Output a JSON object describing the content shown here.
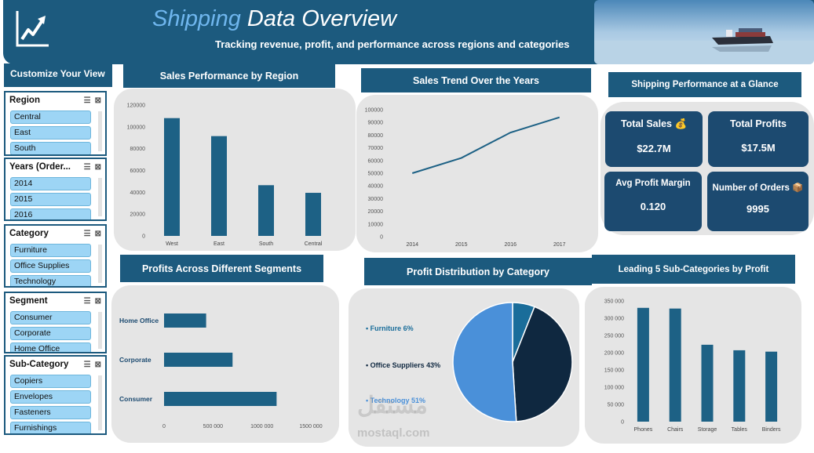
{
  "header": {
    "title_accent": "Shipping",
    "title_rest": " Data Overview",
    "subtitle": "Tracking revenue, profit, and performance across regions and categories"
  },
  "customize": {
    "title": "Customize Your View"
  },
  "slicers": [
    {
      "title": "Region",
      "items": [
        "Central",
        "East",
        "South"
      ]
    },
    {
      "title": "Years (Order...",
      "items": [
        "2014",
        "2015",
        "2016"
      ]
    },
    {
      "title": "Category",
      "items": [
        "Furniture",
        "Office Supplies",
        "Technology"
      ]
    },
    {
      "title": "Segment",
      "items": [
        "Consumer",
        "Corporate",
        "Home Office"
      ]
    },
    {
      "title": "Sub-Category",
      "items": [
        "Copiers",
        "Envelopes",
        "Fasteners",
        "Furnishings"
      ]
    }
  ],
  "sections": {
    "region": "Sales Performance by Region",
    "trend": "Sales Trend Over the Years",
    "glance": "Shipping Performance at a Glance",
    "segments": "Profits Across Different Segments",
    "distribution": "Profit Distribution by Category",
    "subcat": "Leading 5 Sub-Categories by Profit"
  },
  "kpis": {
    "total_sales_label": "Total Sales 💰",
    "total_sales_value": "$22.7M",
    "total_profits_label": "Total Profits",
    "total_profits_value": "$17.5M",
    "margin_label": "Avg Profit Margin",
    "margin_value": "0.120",
    "orders_label": "Number of Orders 📦",
    "orders_value": "9995"
  },
  "colors": {
    "primary": "#1c5a7e",
    "bar": "#1d6185",
    "panel": "#e5e5e5",
    "pie_furniture": "#1a6d9a",
    "pie_office": "#0f2840",
    "pie_technology": "#4a90d9"
  },
  "chart_data": [
    {
      "type": "bar",
      "categories": [
        "West",
        "East",
        "South",
        "Central"
      ],
      "values": [
        108000,
        91500,
        46500,
        39500
      ],
      "ylim": [
        0,
        120000
      ],
      "yticks": [
        "0",
        "20000",
        "40000",
        "60000",
        "80000",
        "100000",
        "120000"
      ]
    },
    {
      "type": "line",
      "x": [
        "2014",
        "2015",
        "2016",
        "2017"
      ],
      "values": [
        50000,
        62000,
        82000,
        94000
      ],
      "ylim": [
        0,
        100000
      ],
      "yticks": [
        "0",
        "10000",
        "20000",
        "30000",
        "40000",
        "50000",
        "60000",
        "70000",
        "80000",
        "90000",
        "100000"
      ]
    },
    {
      "type": "bar",
      "orientation": "horizontal",
      "categories": [
        "Home Office",
        "Corporate",
        "Consumer"
      ],
      "values": [
        430000,
        700000,
        1150000
      ],
      "xlim": [
        0,
        1500000
      ],
      "xticks": [
        "0",
        "500000",
        "1000000",
        "1500000"
      ]
    },
    {
      "type": "pie",
      "categories": [
        "Furniture",
        "Office Suppliers",
        "Technology"
      ],
      "labels": [
        "Furniture 6%",
        "Office Suppliers 43%",
        "Technology 51%"
      ],
      "values": [
        6,
        43,
        51
      ]
    },
    {
      "type": "bar",
      "categories": [
        "Phones",
        "Chairs",
        "Storage",
        "Tables",
        "Binders"
      ],
      "values": [
        330000,
        328000,
        223000,
        207000,
        203000
      ],
      "ylim": [
        0,
        350000
      ],
      "yticks": [
        "0",
        "50000",
        "100000",
        "150000",
        "200000",
        "250000",
        "300000",
        "350000"
      ]
    }
  ],
  "watermark": {
    "arabic": "مستقل",
    "latin": "mostaql.com"
  }
}
